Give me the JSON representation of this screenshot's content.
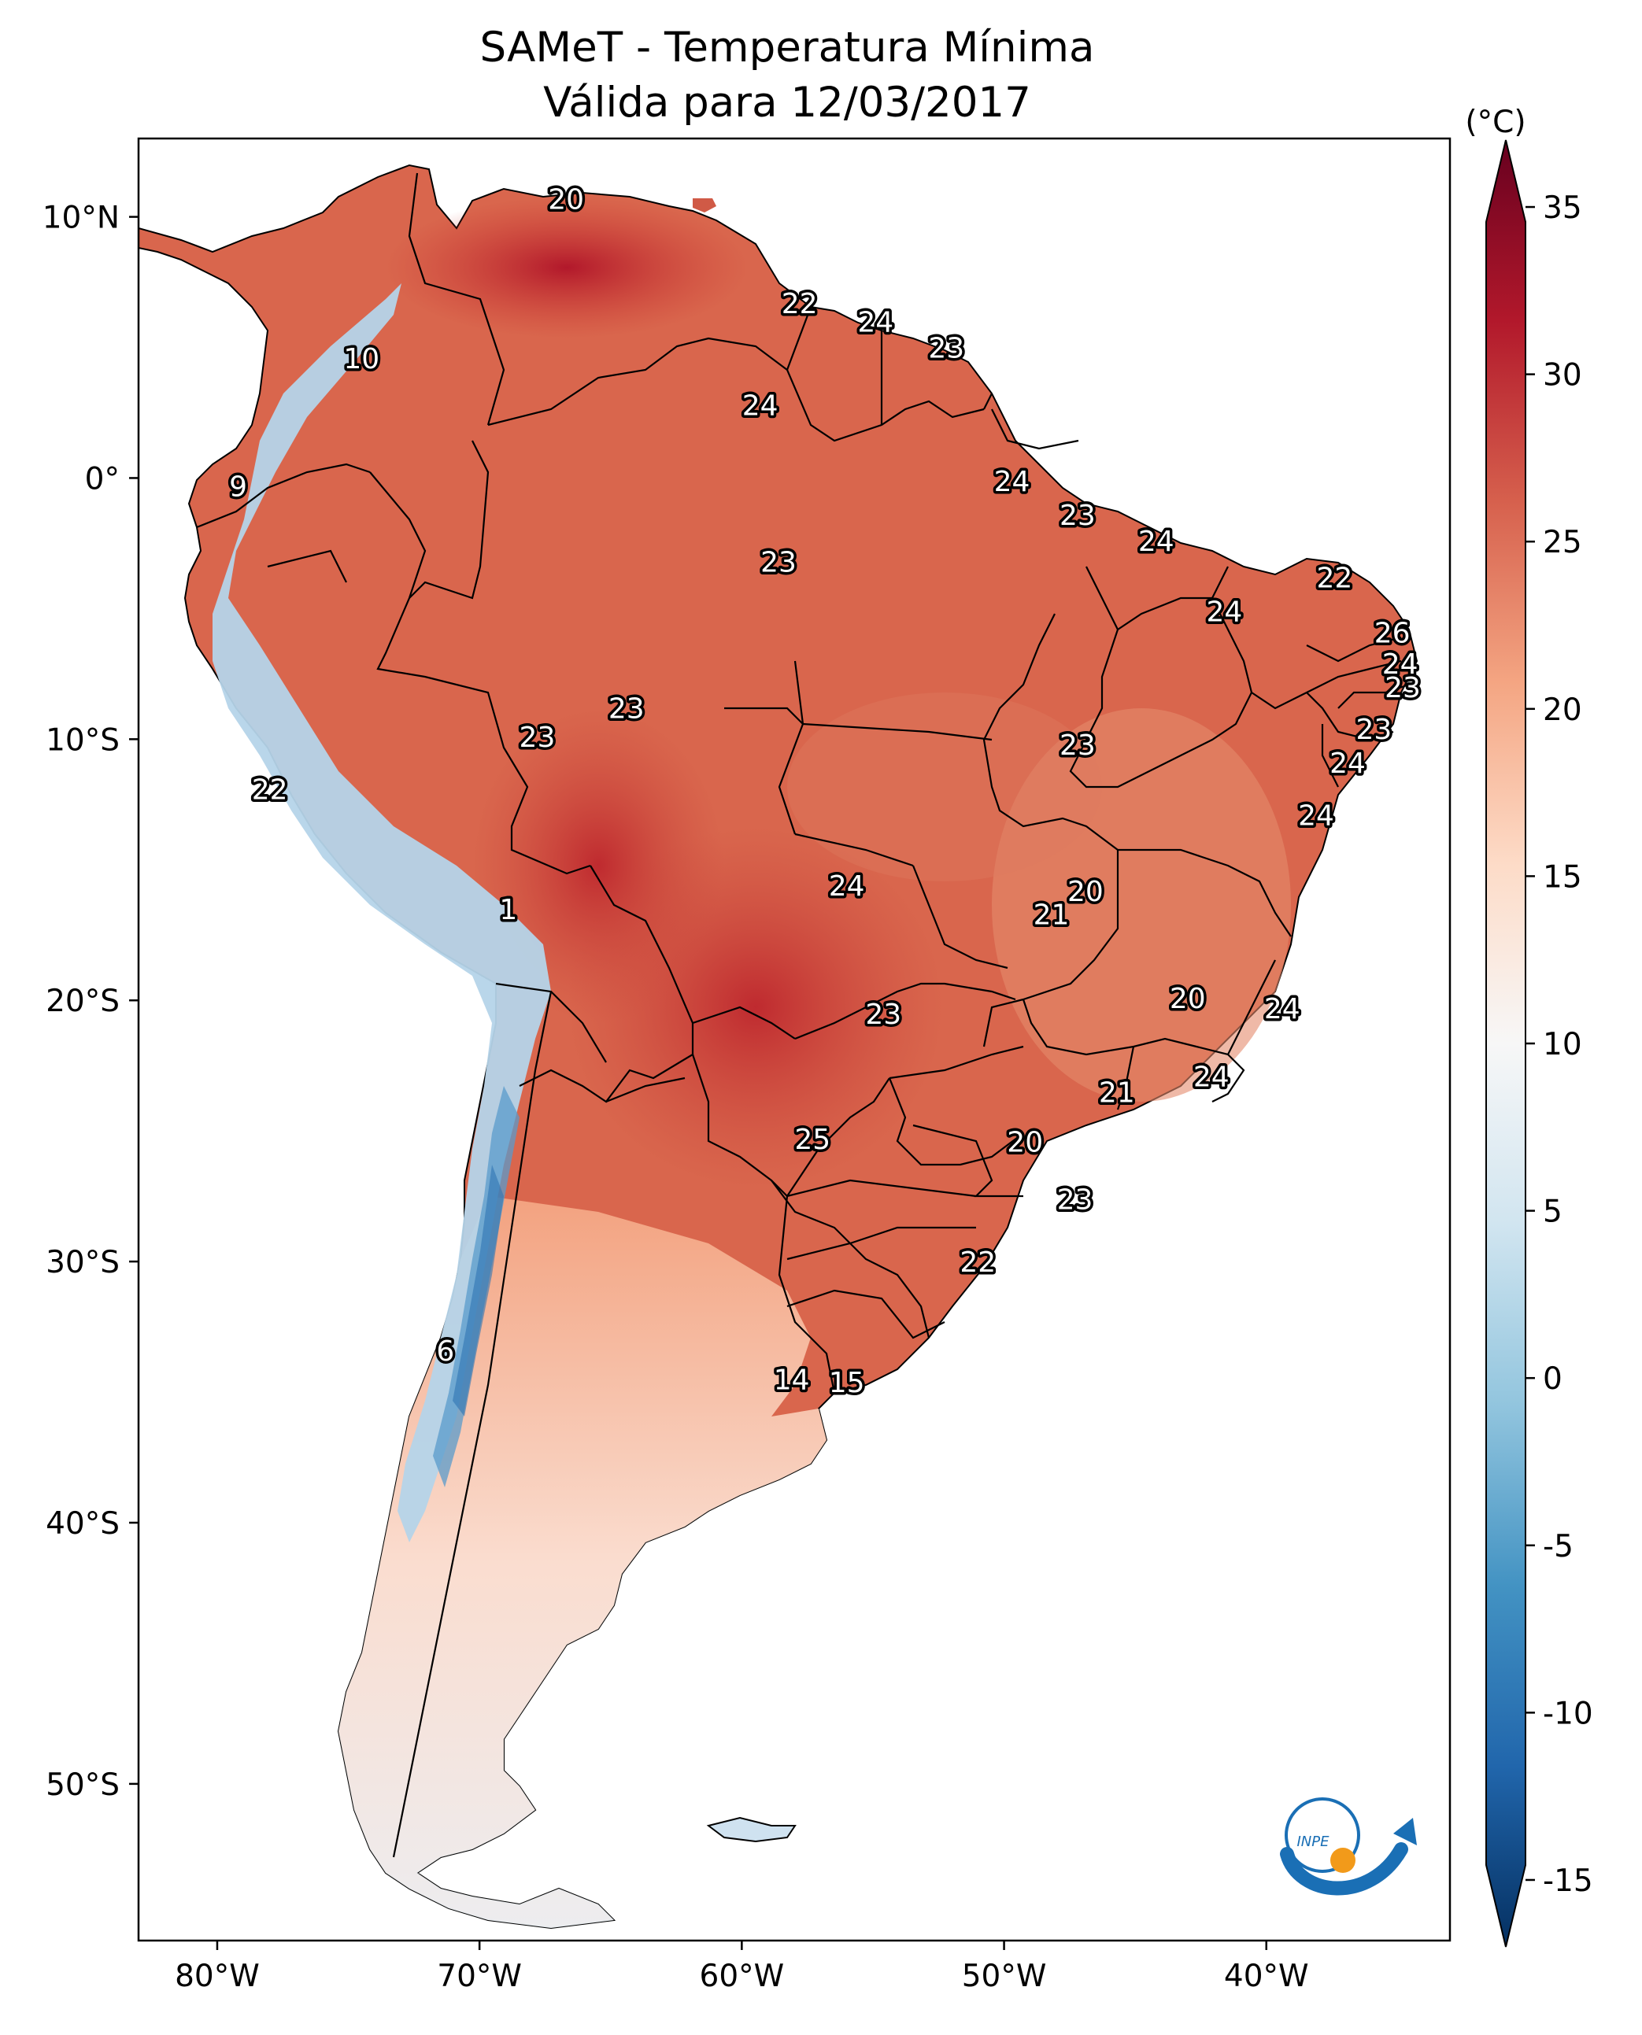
{
  "title_line1": "SAMeT - Temperatura Mínima",
  "title_line2": "Válida para 12/03/2017",
  "logo_text": "INPE",
  "colorbar": {
    "unit_label": "(°C)",
    "ticks": [
      "35",
      "30",
      "25",
      "20",
      "15",
      "10",
      "5",
      "0",
      "-5",
      "-10",
      "-15"
    ],
    "tick_values": [
      35,
      30,
      25,
      20,
      15,
      10,
      5,
      0,
      -5,
      -10,
      -15
    ],
    "vmin": -17,
    "vmax": 37,
    "colors": [
      "#053061",
      "#2166ac",
      "#4393c3",
      "#92c5de",
      "#d1e5f0",
      "#f7f7f7",
      "#fddbc7",
      "#f4a582",
      "#d6604d",
      "#b2182b",
      "#67001f"
    ]
  },
  "axes": {
    "lat_ticks": [
      "10°N",
      "0°",
      "10°S",
      "20°S",
      "30°S",
      "40°S",
      "50°S"
    ],
    "lat_values": [
      10,
      0,
      -10,
      -20,
      -30,
      -40,
      -50
    ],
    "lon_ticks": [
      "80°W",
      "70°W",
      "60°W",
      "50°W",
      "40°W"
    ],
    "lon_values": [
      -80,
      -70,
      -60,
      -50,
      -40
    ],
    "lon_range": [
      -83,
      -33
    ],
    "lat_range": [
      -56,
      13
    ]
  },
  "chart_data": {
    "type": "map",
    "projection": "PlateCarree",
    "variable": "Temperatura Mínima",
    "unit": "°C",
    "colormap": "RdBu_r",
    "station_labels": [
      {
        "text": "20",
        "lon": -66.7,
        "lat": 10.7
      },
      {
        "text": "22",
        "lon": -57.8,
        "lat": 6.7
      },
      {
        "text": "24",
        "lon": -54.9,
        "lat": 6.0
      },
      {
        "text": "23",
        "lon": -52.2,
        "lat": 5.0
      },
      {
        "text": "10",
        "lon": -74.5,
        "lat": 4.6
      },
      {
        "text": "24",
        "lon": -59.3,
        "lat": 2.8
      },
      {
        "text": "9",
        "lon": -79.2,
        "lat": -0.3
      },
      {
        "text": "24",
        "lon": -49.7,
        "lat": -0.1
      },
      {
        "text": "23",
        "lon": -47.2,
        "lat": -1.4
      },
      {
        "text": "24",
        "lon": -44.2,
        "lat": -2.4
      },
      {
        "text": "23",
        "lon": -58.6,
        "lat": -3.2
      },
      {
        "text": "22",
        "lon": -37.4,
        "lat": -3.8
      },
      {
        "text": "24",
        "lon": -41.6,
        "lat": -5.1
      },
      {
        "text": "26",
        "lon": -35.2,
        "lat": -5.9
      },
      {
        "text": "24",
        "lon": -34.9,
        "lat": -7.1
      },
      {
        "text": "23",
        "lon": -34.8,
        "lat": -8.0
      },
      {
        "text": "23",
        "lon": -64.4,
        "lat": -8.8
      },
      {
        "text": "23",
        "lon": -67.8,
        "lat": -9.9
      },
      {
        "text": "23",
        "lon": -47.2,
        "lat": -10.2
      },
      {
        "text": "23",
        "lon": -35.9,
        "lat": -9.6
      },
      {
        "text": "24",
        "lon": -36.9,
        "lat": -10.9
      },
      {
        "text": "22",
        "lon": -78.0,
        "lat": -11.9
      },
      {
        "text": "24",
        "lon": -38.1,
        "lat": -12.9
      },
      {
        "text": "24",
        "lon": -56.0,
        "lat": -15.6
      },
      {
        "text": "20",
        "lon": -46.9,
        "lat": -15.8
      },
      {
        "text": "21",
        "lon": -48.2,
        "lat": -16.7
      },
      {
        "text": "1",
        "lon": -68.9,
        "lat": -16.5
      },
      {
        "text": "20",
        "lon": -43.0,
        "lat": -19.9
      },
      {
        "text": "24",
        "lon": -39.4,
        "lat": -20.3
      },
      {
        "text": "23",
        "lon": -54.6,
        "lat": -20.5
      },
      {
        "text": "24",
        "lon": -42.1,
        "lat": -22.9
      },
      {
        "text": "21",
        "lon": -45.7,
        "lat": -23.5
      },
      {
        "text": "25",
        "lon": -57.3,
        "lat": -25.3
      },
      {
        "text": "20",
        "lon": -49.2,
        "lat": -25.4
      },
      {
        "text": "23",
        "lon": -47.3,
        "lat": -27.6
      },
      {
        "text": "22",
        "lon": -51.0,
        "lat": -30.0
      },
      {
        "text": "6",
        "lon": -71.3,
        "lat": -33.4
      },
      {
        "text": "14",
        "lon": -58.1,
        "lat": -34.5
      },
      {
        "text": "15",
        "lon": -56.0,
        "lat": -34.6
      }
    ]
  }
}
